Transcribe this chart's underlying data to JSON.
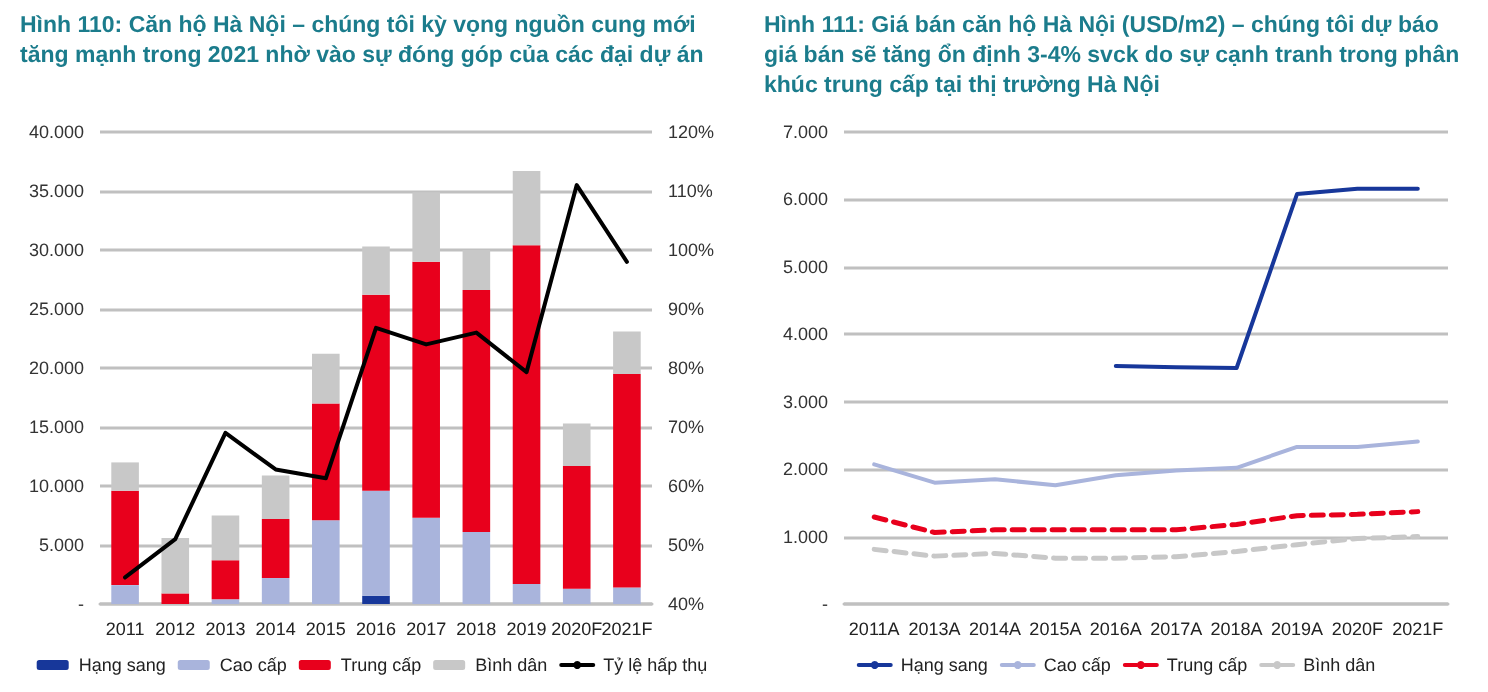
{
  "chart_data": [
    {
      "type": "bar",
      "title": "Hình 110: Căn hộ Hà Nội – chúng tôi kỳ vọng nguồn cung mới tăng mạnh trong 2021 nhờ vào sự đóng góp của các đại dự án",
      "categories": [
        "2011",
        "2012",
        "2013",
        "2014",
        "2015",
        "2016",
        "2017",
        "2018",
        "2019",
        "2020F",
        "2021F"
      ],
      "stacked": true,
      "series": [
        {
          "name": "Hạng sang",
          "color": "#17379a",
          "values": [
            0,
            0,
            0,
            0,
            0,
            700,
            0,
            0,
            0,
            0,
            0
          ]
        },
        {
          "name": "Cao cấp",
          "color": "#a9b4dc",
          "values": [
            1600,
            0,
            400,
            2200,
            7100,
            8900,
            7300,
            6100,
            1700,
            1300,
            1400
          ]
        },
        {
          "name": "Trung cấp",
          "color": "#e8001c",
          "values": [
            8000,
            900,
            3300,
            5000,
            9900,
            16600,
            21700,
            20500,
            28700,
            10400,
            18100
          ]
        },
        {
          "name": "Bình dân",
          "color": "#c8c8c8",
          "values": [
            2400,
            4700,
            3800,
            3700,
            4200,
            4100,
            5900,
            3400,
            6300,
            3600,
            3600
          ]
        },
        {
          "name": "Tỷ lệ hấp thụ",
          "type": "line",
          "axis": "y2",
          "color": "#000000",
          "values": [
            44.5,
            51,
            69,
            62.8,
            61.3,
            86.8,
            84,
            86,
            79.3,
            111,
            98
          ]
        }
      ],
      "ylim": [
        0,
        40000
      ],
      "yticks": [
        {
          "value": 0,
          "label": "-"
        },
        {
          "value": 5000,
          "label": "5.000"
        },
        {
          "value": 10000,
          "label": "10.000"
        },
        {
          "value": 15000,
          "label": "15.000"
        },
        {
          "value": 20000,
          "label": "20.000"
        },
        {
          "value": 25000,
          "label": "25.000"
        },
        {
          "value": 30000,
          "label": "30.000"
        },
        {
          "value": 35000,
          "label": "35.000"
        },
        {
          "value": 40000,
          "label": "40.000"
        }
      ],
      "y2lim": [
        40,
        120
      ],
      "y2ticks": [
        {
          "value": 40,
          "label": "40%"
        },
        {
          "value": 50,
          "label": "50%"
        },
        {
          "value": 60,
          "label": "60%"
        },
        {
          "value": 70,
          "label": "70%"
        },
        {
          "value": 80,
          "label": "80%"
        },
        {
          "value": 90,
          "label": "90%"
        },
        {
          "value": 100,
          "label": "100%"
        },
        {
          "value": 110,
          "label": "110%"
        },
        {
          "value": 120,
          "label": "120%"
        }
      ],
      "grid": "y",
      "legend": "bottom",
      "marker": "none"
    },
    {
      "type": "line",
      "title": "Hình 111: Giá bán căn hộ Hà Nội (USD/m2) – chúng tôi dự báo giá bán sẽ tăng ổn định 3-4% svck do sự cạnh tranh trong phân khúc trung cấp tại thị trường Hà Nội",
      "categories": [
        "2011A",
        "2013A",
        "2014A",
        "2015A",
        "2016A",
        "2017A",
        "2018A",
        "2019A",
        "2020F",
        "2021F"
      ],
      "series": [
        {
          "name": "Hạng sang",
          "color": "#17379a",
          "values": [
            null,
            null,
            null,
            null,
            3530,
            3510,
            3500,
            6080,
            6160,
            6160
          ]
        },
        {
          "name": "Cao cấp",
          "color": "#a9b4dc",
          "values": [
            2070,
            1800,
            1850,
            1760,
            1910,
            1980,
            2020,
            2330,
            2330,
            2410
          ]
        },
        {
          "name": "Trung cấp",
          "color": "#e8001c",
          "line_style": "dashed",
          "values": [
            1290,
            1060,
            1100,
            1100,
            1100,
            1100,
            1180,
            1310,
            1330,
            1370
          ]
        },
        {
          "name": "Bình dân",
          "color": "#c8c8c8",
          "line_style": "dashed",
          "values": [
            810,
            710,
            750,
            680,
            680,
            700,
            780,
            880,
            970,
            1000
          ]
        }
      ],
      "ylim": [
        0,
        7000
      ],
      "yticks": [
        {
          "value": 0,
          "label": "-"
        },
        {
          "value": 1000,
          "label": "1.000"
        },
        {
          "value": 2000,
          "label": "2.000"
        },
        {
          "value": 3000,
          "label": "3.000"
        },
        {
          "value": 4000,
          "label": "4.000"
        },
        {
          "value": 5000,
          "label": "5.000"
        },
        {
          "value": 6000,
          "label": "6.000"
        },
        {
          "value": 7000,
          "label": "7.000"
        }
      ],
      "grid": "y",
      "legend": "bottom",
      "marker": "none",
      "line_style": "solid"
    }
  ]
}
